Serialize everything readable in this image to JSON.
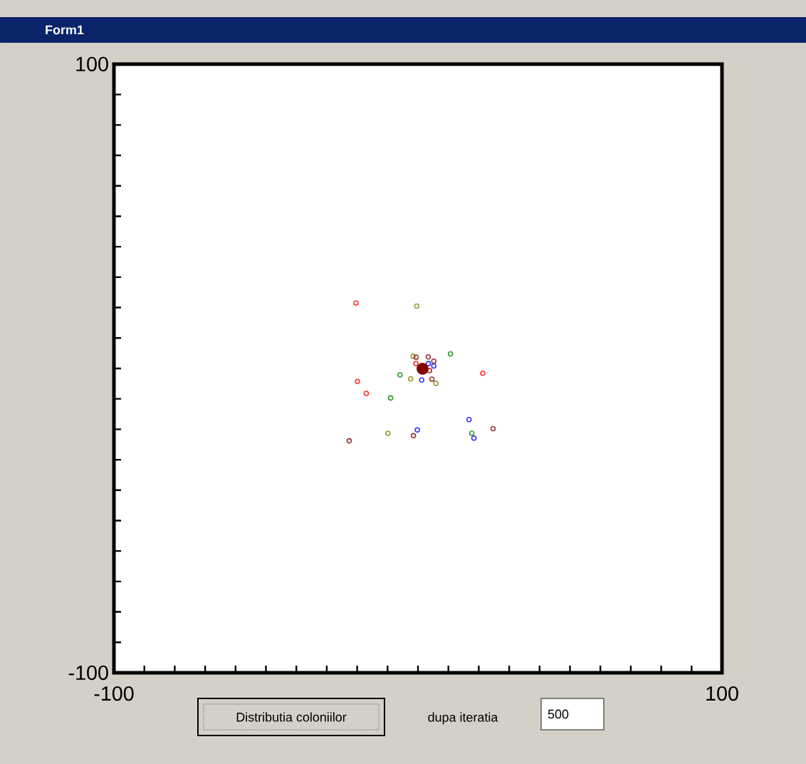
{
  "chart_data": {
    "type": "scatter",
    "title": "Form1",
    "marker": "circle",
    "xlim": [
      -100,
      100
    ],
    "ylim": [
      -100,
      100
    ],
    "xticks": [
      -100,
      {
        "value": -90,
        "label": null
      },
      {
        "value": -80,
        "label": null
      },
      {
        "value": -70,
        "label": null
      },
      {
        "value": -60,
        "label": null
      },
      {
        "value": -50,
        "label": null
      },
      {
        "value": -40,
        "label": null
      },
      {
        "value": -30,
        "label": null
      },
      {
        "value": -20,
        "label": null
      },
      {
        "value": -10,
        "label": null
      },
      {
        "value": 0,
        "label": null
      },
      {
        "value": 10,
        "label": null
      },
      {
        "value": 20,
        "label": null
      },
      {
        "value": 30,
        "label": null
      },
      {
        "value": 40,
        "label": null
      },
      {
        "value": 50,
        "label": null
      },
      {
        "value": 60,
        "label": null
      },
      {
        "value": 70,
        "label": null
      },
      {
        "value": 80,
        "label": null
      },
      {
        "value": 90,
        "label": null
      },
      100
    ],
    "yticks": [
      -100,
      {
        "value": -90,
        "label": null
      },
      {
        "value": -80,
        "label": null
      },
      {
        "value": -70,
        "label": null
      },
      {
        "value": -60,
        "label": null
      },
      {
        "value": -50,
        "label": null
      },
      {
        "value": -40,
        "label": null
      },
      {
        "value": -30,
        "label": null
      },
      {
        "value": -20,
        "label": null
      },
      {
        "value": -10,
        "label": null
      },
      {
        "value": 0,
        "label": null
      },
      {
        "value": 10,
        "label": null
      },
      {
        "value": 20,
        "label": null
      },
      {
        "value": 30,
        "label": null
      },
      {
        "value": 40,
        "label": null
      },
      {
        "value": 50,
        "label": null
      },
      {
        "value": 60,
        "label": null
      },
      {
        "value": 70,
        "label": null
      },
      {
        "value": 80,
        "label": null
      },
      {
        "value": 90,
        "label": null
      },
      100
    ],
    "series": [
      {
        "color": "#ff3333",
        "x": [
          -20.4,
          21.3,
          -19.9,
          -17,
          -0.7
        ],
        "values": [
          21.5,
          -1.6,
          -4.3,
          -8.2,
          1.6
        ]
      },
      {
        "color": "#999933",
        "x": [
          -0.4,
          -1.6,
          -2.4,
          5.9,
          -9.9
        ],
        "values": [
          20.5,
          4.0,
          -3.4,
          -4.9,
          -21.3
        ]
      },
      {
        "color": "#339933",
        "x": [
          10.7,
          -5.9,
          -9.0,
          17.7
        ],
        "values": [
          4.8,
          -2.1,
          -9.7,
          -21.3
        ]
      },
      {
        "color": "#3333ff",
        "x": [
          16.8,
          18.4,
          -0.2,
          1.2,
          5.2,
          3.4
        ],
        "values": [
          -16.8,
          -22.9,
          -20.2,
          -3.8,
          0.8,
          1.6
        ]
      },
      {
        "color": "#993333",
        "x": [
          24.7,
          -22.6,
          -1.5,
          3.4,
          5.2,
          4.6,
          3.8,
          -0.6
        ],
        "values": [
          -19.8,
          -23.8,
          -22.1,
          3.8,
          2.4,
          -3.5,
          -0.7,
          3.7
        ]
      },
      {
        "type": "bubble",
        "color": "#800000",
        "x": [
          1.5
        ],
        "values": [
          -0.1
        ],
        "sizes": [
          1
        ]
      }
    ],
    "annotations": [
      "Distributia coloniilor",
      "dupa iteratia",
      "500"
    ]
  }
}
